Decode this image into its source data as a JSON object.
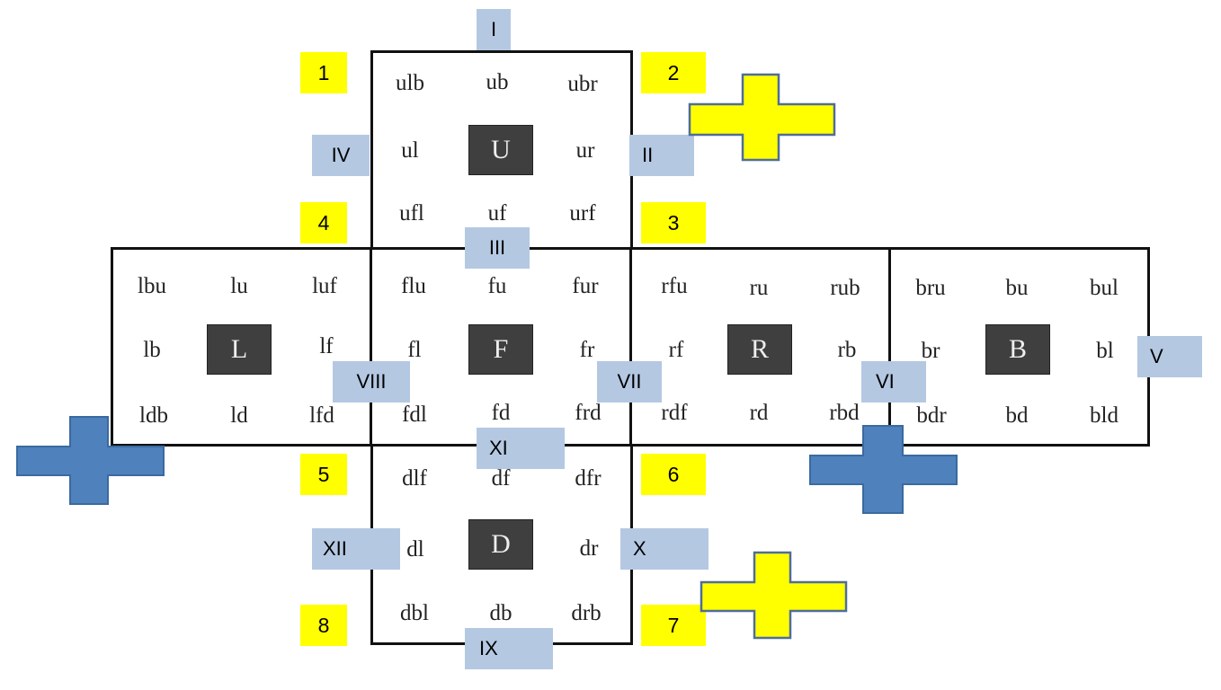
{
  "faces": [
    {
      "id": "U",
      "label": "U",
      "cells": [
        "ulb",
        "ub",
        "ubr",
        "ul",
        "ur",
        "ufl",
        "uf",
        "urf"
      ]
    },
    {
      "id": "L",
      "label": "L",
      "cells": [
        "lbu",
        "lu",
        "luf",
        "lb",
        "lf",
        "ldb",
        "ld",
        "lfd"
      ]
    },
    {
      "id": "F",
      "label": "F",
      "cells": [
        "flu",
        "fu",
        "fur",
        "fl",
        "fr",
        "fdl",
        "fd",
        "frd"
      ]
    },
    {
      "id": "R",
      "label": "R",
      "cells": [
        "rfu",
        "ru",
        "rub",
        "rf",
        "rb",
        "rdf",
        "rd",
        "rbd"
      ]
    },
    {
      "id": "B",
      "label": "B",
      "cells": [
        "bru",
        "bu",
        "bul",
        "br",
        "bl",
        "bdr",
        "bd",
        "bld"
      ]
    },
    {
      "id": "D",
      "label": "D",
      "cells": [
        "dlf",
        "df",
        "dfr",
        "dl",
        "dr",
        "dbl",
        "db",
        "drb"
      ]
    }
  ],
  "corner_numbers": [
    "1",
    "2",
    "3",
    "4",
    "5",
    "6",
    "7",
    "8"
  ],
  "edge_labels": [
    "I",
    "II",
    "III",
    "IV",
    "V",
    "VI",
    "VII",
    "VIII",
    "IX",
    "X",
    "XI",
    "XII"
  ],
  "colors": {
    "corner_marker": "#ffff00",
    "edge_marker": "#b4c8e2",
    "yellow_cross": "#ffff00",
    "blue_cross": "#4f81bd",
    "center_fill": "#3f3f3f"
  }
}
